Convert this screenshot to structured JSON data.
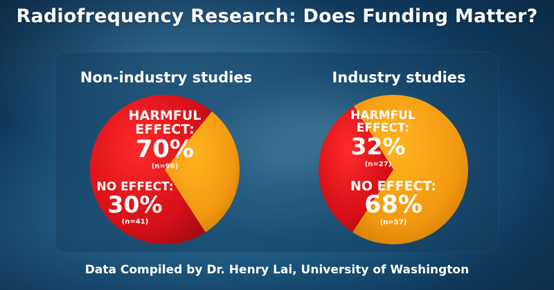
{
  "title": "Radiofrequency Research: Does Funding Matter?",
  "footer": "Data Compiled by Dr. Henry Lai, University of Washington",
  "colors": {
    "harmful": "#e0111b",
    "harmful_dark": "#b40d16",
    "no_effect": "#f39a12",
    "no_effect_dark": "#c87405"
  },
  "chart_data": [
    {
      "type": "pie",
      "title": "Non-industry studies",
      "slices": [
        {
          "label_lines": [
            "HARMFUL",
            "EFFECT:"
          ],
          "percent_text": "70%",
          "n_text": "(n=96)",
          "value": 70,
          "count": 96
        },
        {
          "label_lines": [
            "NO EFFECT:"
          ],
          "percent_text": "30%",
          "n_text": "(n=41)",
          "value": 30,
          "count": 41
        }
      ]
    },
    {
      "type": "pie",
      "title": "Industry studies",
      "slices": [
        {
          "label_lines": [
            "HARMFUL",
            "EFFECT:"
          ],
          "percent_text": "32%",
          "n_text": "(n=27)",
          "value": 32,
          "count": 27
        },
        {
          "label_lines": [
            "NO EFFECT:"
          ],
          "percent_text": "68%",
          "n_text": "(n=57)",
          "value": 68,
          "count": 57
        }
      ]
    }
  ]
}
